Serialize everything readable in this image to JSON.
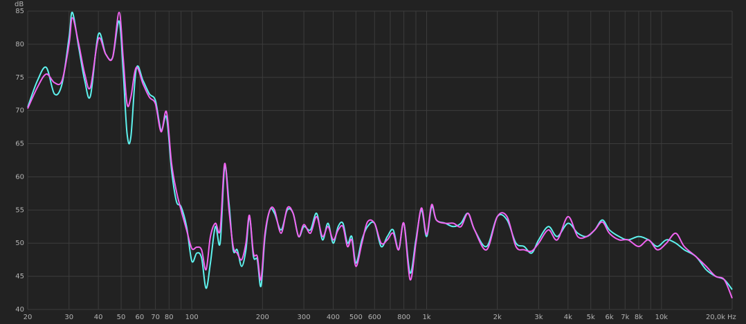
{
  "chart_data": {
    "type": "line",
    "x_unit": "Hz",
    "y_unit": "dB",
    "xscale": "log",
    "grid": true,
    "xlim": [
      20,
      20000
    ],
    "ylim": [
      40,
      85
    ],
    "xticks": [
      20,
      30,
      40,
      50,
      60,
      70,
      80,
      100,
      200,
      300,
      400,
      500,
      600,
      800,
      {
        "value": 1000,
        "label": "1k"
      },
      {
        "value": 2000,
        "label": "2k"
      },
      {
        "value": 3000,
        "label": "3k"
      },
      {
        "value": 4000,
        "label": "4k"
      },
      {
        "value": 5000,
        "label": "5k"
      },
      {
        "value": 6000,
        "label": "6k"
      },
      {
        "value": 7000,
        "label": "7k"
      },
      {
        "value": 8000,
        "label": "8k"
      },
      {
        "value": 10000,
        "label": "10k"
      },
      {
        "value": 20000,
        "label": "20,0k"
      }
    ],
    "xgrid_minor": [
      90,
      700,
      900,
      9000
    ],
    "yticks": [
      40,
      45,
      50,
      55,
      60,
      65,
      70,
      75,
      80,
      85
    ],
    "x": [
      20,
      22,
      24,
      26,
      28,
      30,
      31,
      33,
      35,
      37,
      40,
      43,
      46,
      49,
      51,
      53,
      55,
      58,
      62,
      66,
      70,
      74,
      78,
      82,
      86,
      90,
      95,
      100,
      105,
      110,
      115,
      120,
      126,
      132,
      138,
      144,
      150,
      156,
      163,
      170,
      176,
      183,
      190,
      197,
      205,
      215,
      225,
      240,
      255,
      270,
      285,
      300,
      320,
      340,
      360,
      380,
      400,
      420,
      440,
      460,
      480,
      500,
      530,
      560,
      600,
      640,
      680,
      720,
      760,
      800,
      850,
      900,
      950,
      1000,
      1050,
      1100,
      1200,
      1300,
      1400,
      1500,
      1600,
      1800,
      2000,
      2200,
      2400,
      2600,
      2800,
      3000,
      3300,
      3600,
      4000,
      4400,
      4800,
      5200,
      5600,
      6000,
      6600,
      7200,
      8000,
      8800,
      9600,
      10500,
      11500,
      12500,
      14000,
      15500,
      17000,
      18500,
      20000
    ],
    "series": [
      {
        "color": "#5ef2ee",
        "values": [
          70.5,
          74.5,
          76.5,
          72.5,
          74,
          81,
          84.8,
          79.5,
          74.5,
          72.2,
          81.5,
          78.5,
          78,
          83.5,
          76,
          66.5,
          66,
          76.3,
          74.5,
          72.5,
          71.5,
          67,
          69,
          61,
          56.3,
          55.5,
          52.5,
          47.3,
          48.5,
          47.8,
          43.2,
          47,
          52.5,
          50,
          61.5,
          56,
          49,
          49,
          46.5,
          49,
          54,
          48,
          47.5,
          43.5,
          51,
          55,
          54.5,
          52,
          55,
          54.5,
          51,
          52.5,
          52,
          54.5,
          50.5,
          53,
          50,
          52.5,
          53,
          50,
          51,
          47,
          50.5,
          52.5,
          53,
          49.5,
          51,
          52,
          49,
          53,
          45.5,
          50.5,
          55,
          51,
          55.5,
          53.5,
          53,
          52.5,
          53,
          54.5,
          52,
          49.5,
          54,
          53.5,
          50,
          49.5,
          48.5,
          50.5,
          52.5,
          51,
          53,
          51.5,
          51,
          52,
          53.5,
          52,
          51,
          50.5,
          51,
          50.5,
          49.5,
          50.5,
          50,
          49,
          48,
          46,
          45,
          44.5,
          43
        ]
      },
      {
        "color": "#f064f0",
        "values": [
          70.3,
          73.5,
          75.5,
          74.2,
          74.5,
          80,
          84,
          80,
          75.5,
          73.5,
          80.8,
          78.5,
          78,
          84.8,
          78,
          71,
          72,
          76.5,
          74,
          72,
          71,
          66.8,
          69.8,
          62,
          57.8,
          55,
          52,
          49.2,
          49.4,
          49,
          46,
          51,
          53,
          52,
          62,
          55,
          49.5,
          48.5,
          47.5,
          50,
          54.2,
          48.5,
          48,
          44.5,
          51.5,
          55,
          55,
          51.5,
          55.3,
          54.5,
          51,
          52.8,
          51.5,
          54,
          51,
          52.5,
          50.5,
          52,
          52.5,
          49.5,
          50.5,
          46.5,
          50,
          53.2,
          53,
          50,
          50.5,
          51.5,
          49,
          53,
          44.5,
          50,
          55.3,
          51.3,
          55.8,
          53.5,
          53,
          53,
          52.5,
          54.5,
          52,
          49,
          54,
          54,
          49.5,
          49,
          48.8,
          50,
          52,
          50.5,
          54,
          51,
          51,
          52,
          53.2,
          51.5,
          50.5,
          50.5,
          49.5,
          50.5,
          49,
          50,
          51.5,
          49.5,
          48,
          46.5,
          45,
          44.5,
          41.7
        ]
      }
    ]
  }
}
